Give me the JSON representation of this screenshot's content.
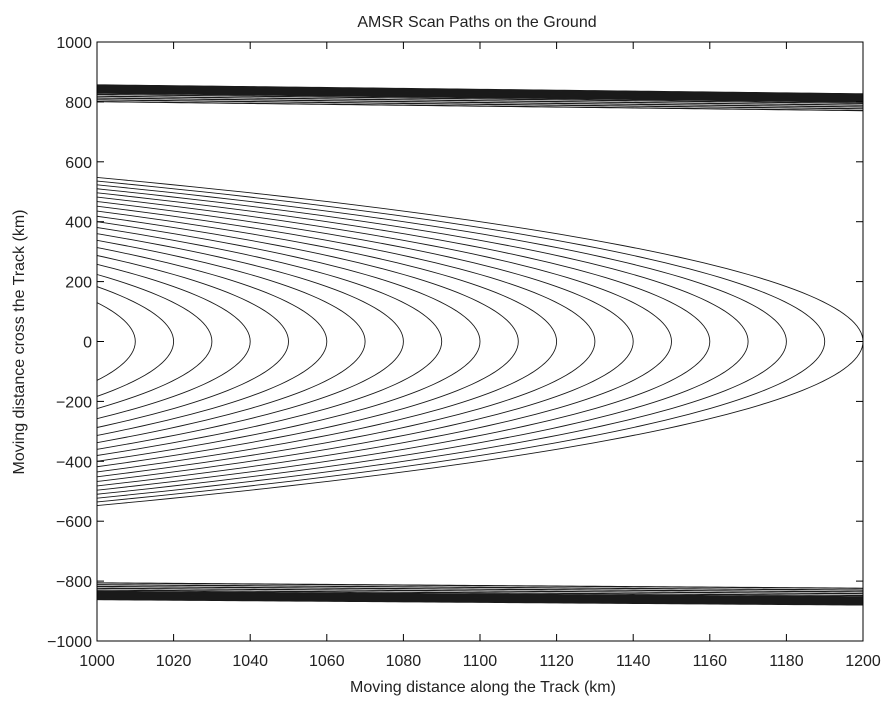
{
  "chart_data": {
    "type": "line",
    "title": "AMSR Scan Paths on the Ground",
    "xlabel": "Moving distance  along the Track (km)",
    "ylabel": "Moving distance  cross the Track (km)",
    "xlim": [
      1000,
      1200
    ],
    "ylim": [
      -1000,
      1000
    ],
    "xticks": [
      1000,
      1020,
      1040,
      1060,
      1080,
      1100,
      1120,
      1140,
      1160,
      1180,
      1200
    ],
    "yticks": [
      -1000,
      -800,
      -600,
      -400,
      -200,
      0,
      200,
      400,
      600,
      800,
      1000
    ],
    "grid": false,
    "legend": "none",
    "line_color": "#1a1a1a",
    "scan_pattern": {
      "description_kind": "conical scan arcs (circles in ground coordinates)",
      "radius_km": 850,
      "along_track_spacing_km": 10,
      "first_arc_nose_x": 1000,
      "last_arc_nose_x": 1200,
      "arc_count": 21,
      "y_extent": [
        -870,
        860
      ],
      "top_edge_y_at_xlim": [
        855,
        825
      ],
      "bottom_edge_y_at_xlim": [
        -860,
        -878
      ]
    }
  }
}
